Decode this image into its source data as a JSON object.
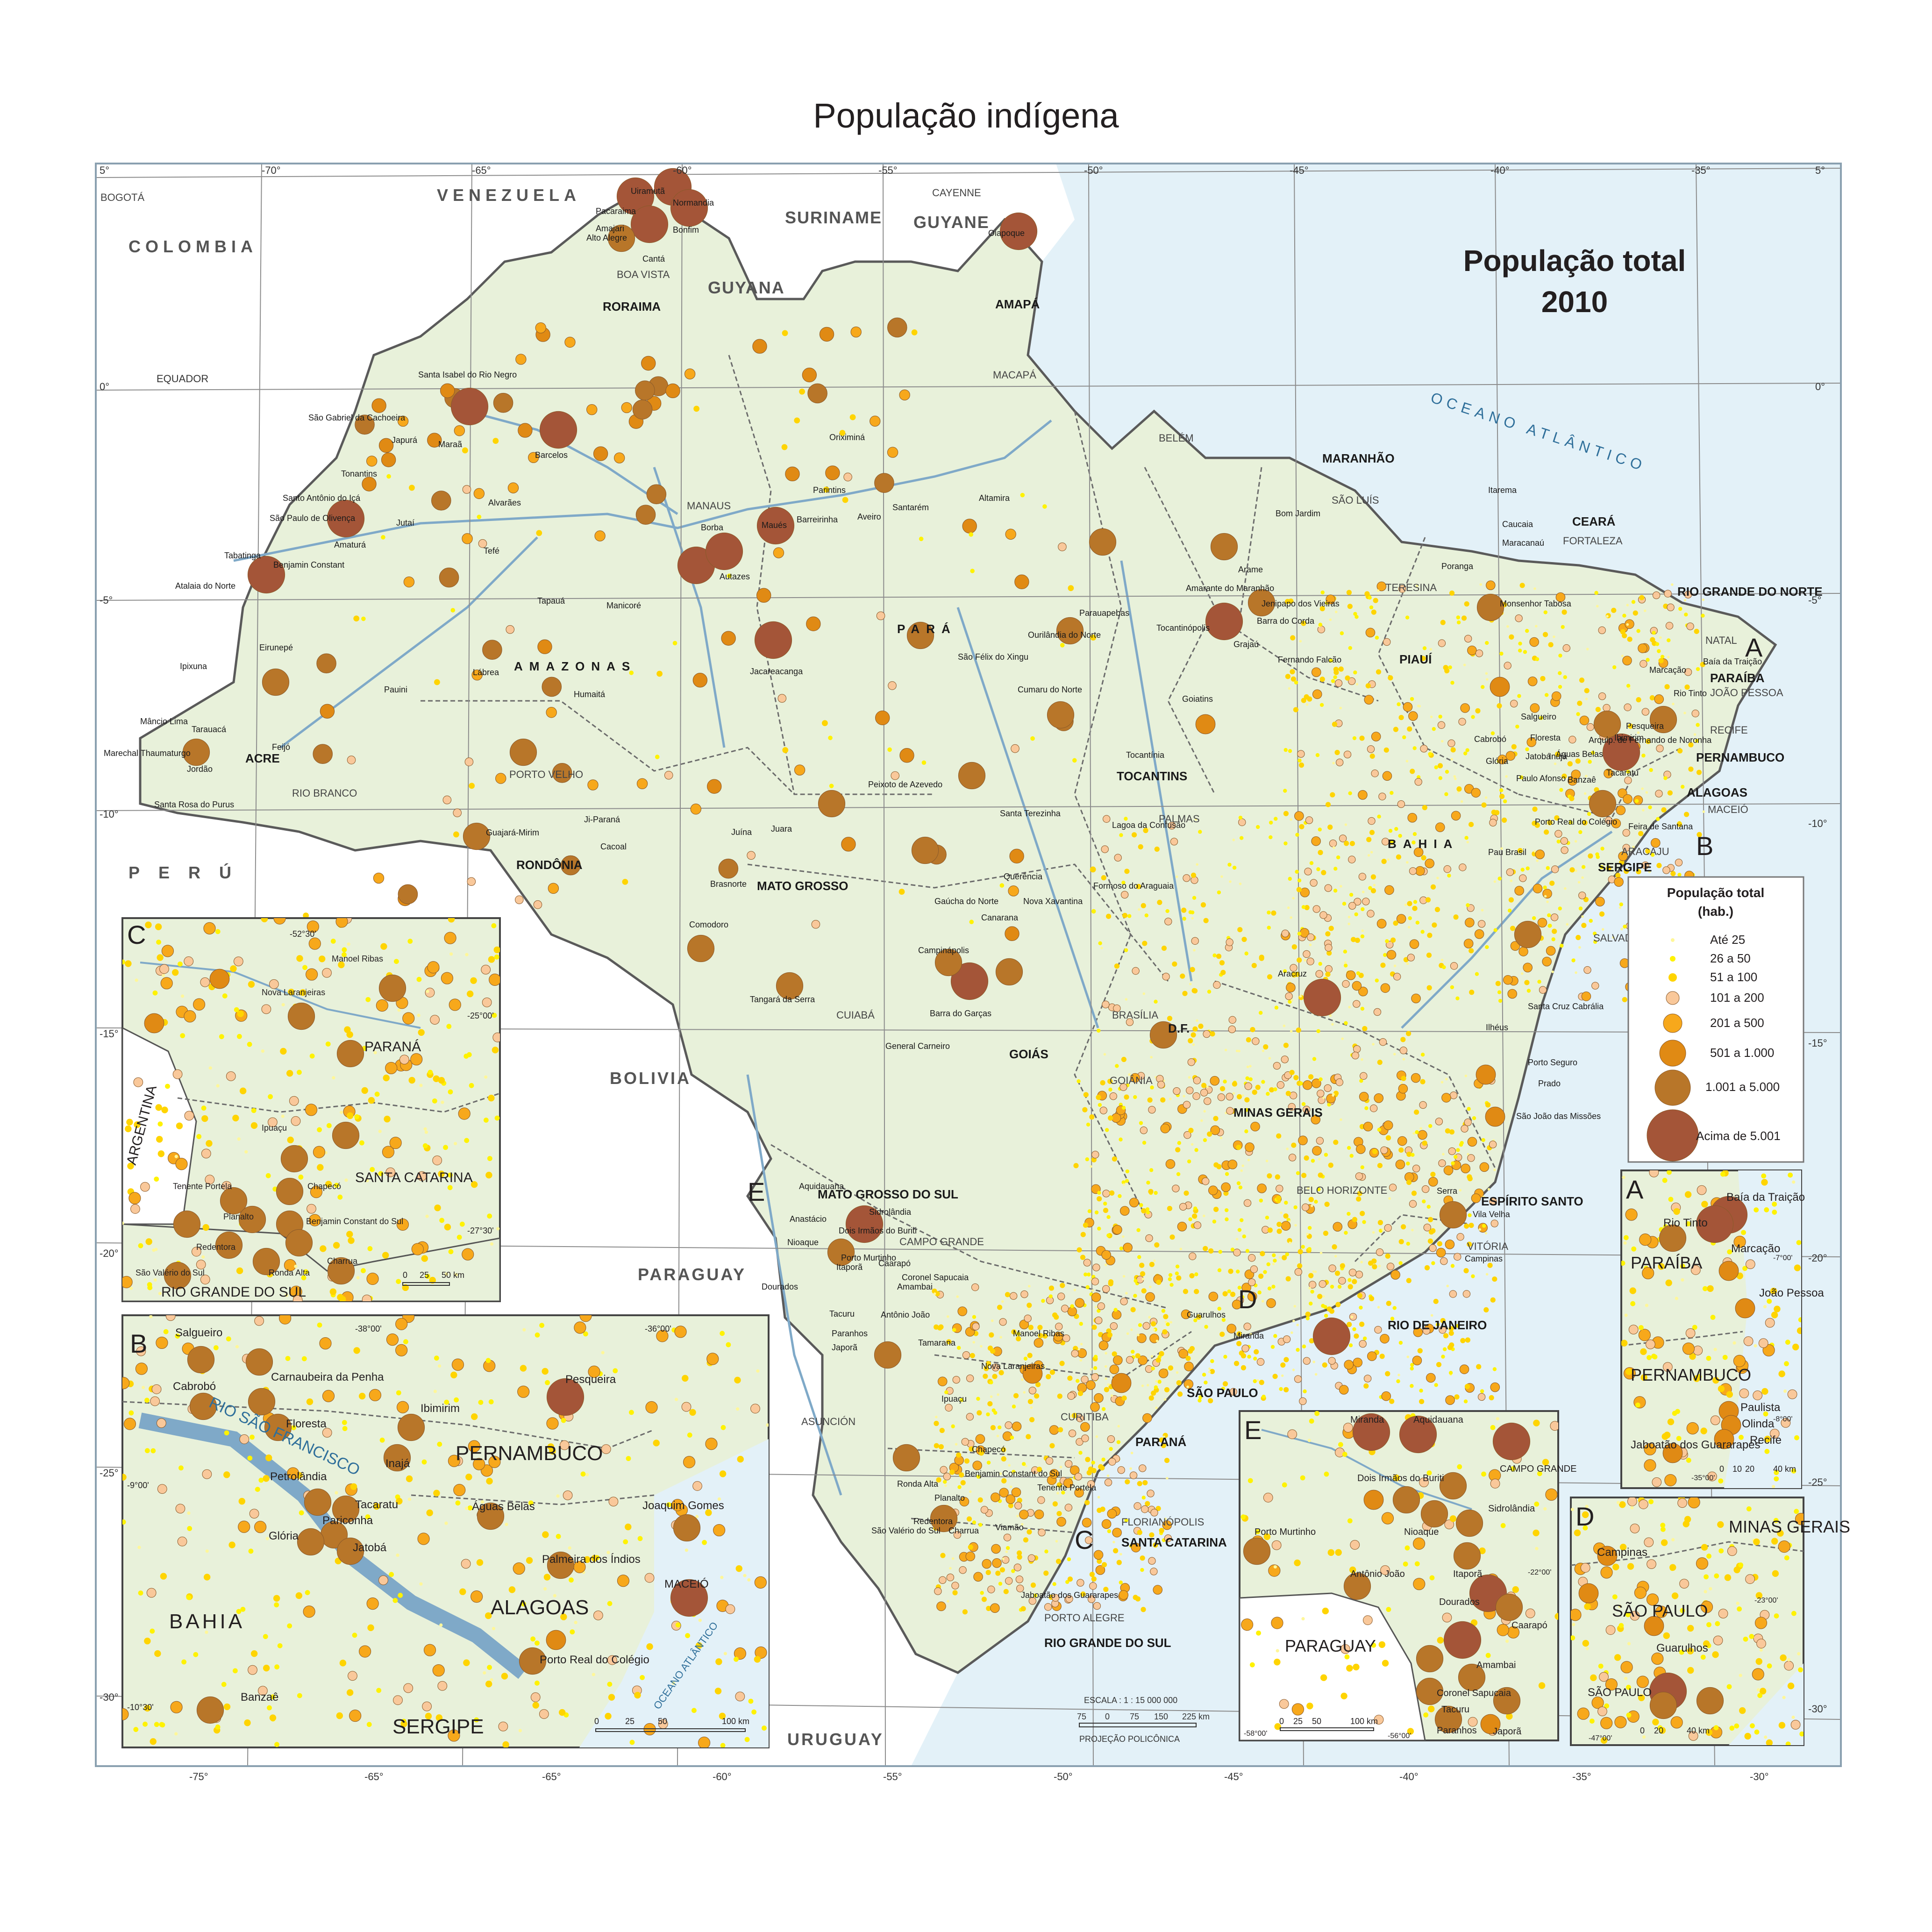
{
  "title": "População indígena",
  "map": {
    "subtitle_line1": "População total",
    "subtitle_line2": "2010",
    "colors": {
      "sea": "#e3f1f8",
      "land_brazil": "#e8f1da",
      "land_other": "#ffffff",
      "border": "#5a5a5a",
      "river": "#7fa9c8",
      "class1": "#fff799",
      "class2": "#fff200",
      "class3": "#ffd400",
      "class4": "#f9c89a",
      "class5": "#f7a81b",
      "class6": "#e08a14",
      "class7": "#b87629",
      "class8": "#a45538"
    },
    "countries": [
      "VENEZUELA",
      "COLOMBIA",
      "SURINAME",
      "GUYANE",
      "GUYANA",
      "PERÚ",
      "BOLIVIA",
      "PARAGUAY",
      "URUGUAY",
      "ARGENTINA"
    ],
    "ocean_label": "OCEANO  ATLÂNTICO",
    "states": [
      "RORAIMA",
      "AMAPÁ",
      "AMAZONAS",
      "PARÁ",
      "MARANHÃO",
      "CEARÁ",
      "RIO GRANDE DO NORTE",
      "PARAÍBA",
      "PERNAMBUCO",
      "ALAGOAS",
      "SERGIPE",
      "BAHIA",
      "PIAUÍ",
      "TOCANTINS",
      "ACRE",
      "RONDÔNIA",
      "MATO  GROSSO",
      "GOIÁS",
      "D.F.",
      "MINAS GERAIS",
      "ESPÍRITO SANTO",
      "RIO DE JANEIRO",
      "SÃO PAULO",
      "PARANÁ",
      "SANTA CATARINA",
      "RIO GRANDE DO SUL",
      "MATO GROSSO DO SUL"
    ],
    "capitals": [
      "BOA VISTA",
      "MACAPÁ",
      "BELÉM",
      "MANAUS",
      "SÃO LUÍS",
      "FORTALEZA",
      "TERESINA",
      "NATAL",
      "JOÃO PESSOA",
      "RECIFE",
      "MACEIÓ",
      "ARACAJU",
      "SALVADOR",
      "PALMAS",
      "PORTO VELHO",
      "RIO BRANCO",
      "CUIABÁ",
      "BRASÍLIA",
      "GOIÂNIA",
      "BELO HORIZONTE",
      "VITÓRIA",
      "CAMPO GRANDE",
      "CURITIBA",
      "FLORIANÓPOLIS",
      "PORTO ALEGRE",
      "ASUNCIÓN",
      "BOGOTÁ",
      "CAYENNE"
    ],
    "cities": [
      "Uiramutã",
      "Pacaraima",
      "Normandia",
      "Amajari",
      "Alto Alegre",
      "Bonfim",
      "Cantá",
      "Oiapoque",
      "Santa Isabel do Rio Negro",
      "São Gabriel da Cachoeira",
      "Barcelos",
      "Japurá",
      "Maraã",
      "Tonantins",
      "Santo Antônio do Içá",
      "São Paulo de Olivença",
      "Amaturá",
      "Jutaí",
      "Alvarães",
      "Tefé",
      "Tabatinga",
      "Benjamin Constant",
      "Atalaia do Norte",
      "Borba",
      "Maués",
      "Autazes",
      "Oriximiná",
      "Parintins",
      "Barreirinha",
      "Aveiro",
      "Santarém",
      "Altamira",
      "Manicoré",
      "Tapauá",
      "Eirunepé",
      "Ipixuna",
      "Lábrea",
      "Pauini",
      "Humaitá",
      "Jacareacanga",
      "Mâncio Lima",
      "Tarauacá",
      "Feijó",
      "Marechal Thaumaturgo",
      "Jordão",
      "Santa Rosa do Purus",
      "Guajará-Mirim",
      "Ji-Paraná",
      "Cacoal",
      "Juína",
      "Juara",
      "Brasnorte",
      "Comodoro",
      "Tangará da Serra",
      "Peixoto de Azevedo",
      "Santa Terezinha",
      "Querência",
      "Gaúcha do Norte",
      "Canarana",
      "Nova Xavantina",
      "Campinápolis",
      "Barra do Garças",
      "General Carneiro",
      "Parauapebas",
      "Ourilândia do Norte",
      "São Félix do Xingu",
      "Cumaru do Norte",
      "Goiatins",
      "Tocantinópolis",
      "Tocantínia",
      "Lagoa da Confusão",
      "Formoso do Araguaia",
      "Amarante do Maranhão",
      "Bom Jardim",
      "Arame",
      "Jenipapo dos Vieiras",
      "Barra do Corda",
      "Grajaú",
      "Fernando Falcão",
      "Itarema",
      "Caucaia",
      "Maracanaú",
      "Poranga",
      "Monsenhor Tabosa",
      "Baía da Traição",
      "Marcação",
      "Rio Tinto",
      "Pesqueira",
      "Ibimirim",
      "Salgueiro",
      "Cabrobó",
      "Floresta",
      "Inajá",
      "Jatobá",
      "Águas Belas",
      "Tacaratu",
      "Glória",
      "Paulo Afonso",
      "Banzaê",
      "Porto Real do Colégio",
      "Feira de Santana",
      "Pau Brasil",
      "Ilhéus",
      "Santa Cruz Cabrália",
      "Porto Seguro",
      "Prado",
      "São João das Missões",
      "Aracruz",
      "Serra",
      "Vila Velha",
      "Campinas",
      "Guarulhos",
      "Miranda",
      "Aquidauana",
      "Anastácio",
      "Nioaque",
      "Dois Irmãos do Buriti",
      "Sidrolândia",
      "Porto Murtinho",
      "Dourados",
      "Itaporã",
      "Caarapó",
      "Amambai",
      "Antônio João",
      "Coronel Sapucaia",
      "Tacuru",
      "Paranhos",
      "Japorã",
      "Tamarana",
      "Manoel Ribas",
      "Nova Laranjeiras",
      "Ipuaçu",
      "Chapecó",
      "Benjamin Constant do Sul",
      "Tenente Portela",
      "Ronda Alta",
      "Planalto",
      "Redentora",
      "São Valério do Sul",
      "Charrua",
      "Viamão",
      "Jaboatão dos Guararapes",
      "Arquip. de Fernando de Noronha"
    ],
    "lat_labels": [
      "5°",
      "0°",
      "-5°",
      "-10°",
      "-15°",
      "-20°",
      "-25°",
      "-30°"
    ],
    "lon_labels": [
      "-75°",
      "-70°",
      "-65°",
      "-60°",
      "-55°",
      "-50°",
      "-45°",
      "-40°",
      "-35°",
      "-30°"
    ],
    "scale": {
      "label": "ESCALA : 1 : 15 000 000",
      "ticks": [
        "75",
        "0",
        "75",
        "150",
        "225 km"
      ],
      "projection": "PROJEÇÃO POLICÔNICA"
    },
    "equator_label": "EQUADOR"
  },
  "legend": {
    "title_line1": "População total",
    "title_line2": "(hab.)",
    "classes": [
      "Até 25",
      "26 a 50",
      "51 a 100",
      "101 a 200",
      "201 a 500",
      "501 a 1.000",
      "1.001 a 5.000",
      "Acima de 5.001"
    ]
  },
  "insets": {
    "A": {
      "letter": "A",
      "labels": [
        "PARAÍBA",
        "PERNAMBUCO",
        "Baía da Traição",
        "Rio Tinto",
        "Marcação",
        "João Pessoa",
        "Paulista",
        "Olinda",
        "Recife",
        "Jaboatão dos Guararapes"
      ],
      "coords": [
        "-7°00'",
        "-8°00'",
        "-35°00'"
      ],
      "scale": [
        "0",
        "10",
        "20",
        "40 km"
      ]
    },
    "B": {
      "letter": "B",
      "labels": [
        "PERNAMBUCO",
        "ALAGOAS",
        "BAHIA",
        "SERGIPE",
        "Salgueiro",
        "Cabrobó",
        "Carnaubeira da Penha",
        "Floresta",
        "Ibimirim",
        "Pesqueira",
        "Inajá",
        "Petrolândia",
        "Tacaratu",
        "Pariconha",
        "Glória",
        "Jatobá",
        "Águas Belas",
        "Joaquim Gomes",
        "Palmeira dos Índios",
        "MACEIÓ",
        "Porto Real do Colégio",
        "Banzaê",
        "RIO SÃO FRANCISCO",
        "OCEANO ATLÂNTICO"
      ],
      "coords": [
        "-38°00'",
        "-36°00'",
        "-9°00'",
        "-10°30'"
      ],
      "scale": [
        "0",
        "25",
        "50",
        "100 km"
      ]
    },
    "C": {
      "letter": "C",
      "labels": [
        "PARANÁ",
        "SANTA CATARINA",
        "RIO GRANDE DO SUL",
        "ARGENTINA",
        "Manoel Ribas",
        "Nova Laranjeiras",
        "Ipuaçu",
        "Tenente Portela",
        "Chapecó",
        "Planalto",
        "Benjamin Constant do Sul",
        "Redentora",
        "Charrua",
        "Ronda Alta",
        "São Valério do Sul"
      ],
      "coords": [
        "-52°30'",
        "-25°00'",
        "-27°30'"
      ],
      "scale": [
        "0",
        "25",
        "50 km"
      ]
    },
    "D": {
      "letter": "D",
      "labels": [
        "MINAS GERAIS",
        "SÃO PAULO",
        "Campinas",
        "Guarulhos",
        "SÃO PAULO"
      ],
      "coords": [
        "-23°00'",
        "-47°00'"
      ],
      "scale": [
        "0",
        "20",
        "40 km"
      ]
    },
    "E": {
      "letter": "E",
      "labels": [
        "PARAGUAY",
        "Miranda",
        "Aquidauana",
        "Dois Irmãos do Buriti",
        "CAMPO GRANDE",
        "Sidrolândia",
        "Nioaque",
        "Porto Murtinho",
        "Antônio João",
        "Itaporã",
        "Dourados",
        "Caarapó",
        "Amambai",
        "Coronel Sapucaia",
        "Tacuru",
        "Paranhos",
        "Japorã"
      ],
      "coords": [
        "-22°00'",
        "-58°00'",
        "-56°00'"
      ],
      "scale": [
        "0",
        "25",
        "50",
        "100 km"
      ]
    }
  }
}
